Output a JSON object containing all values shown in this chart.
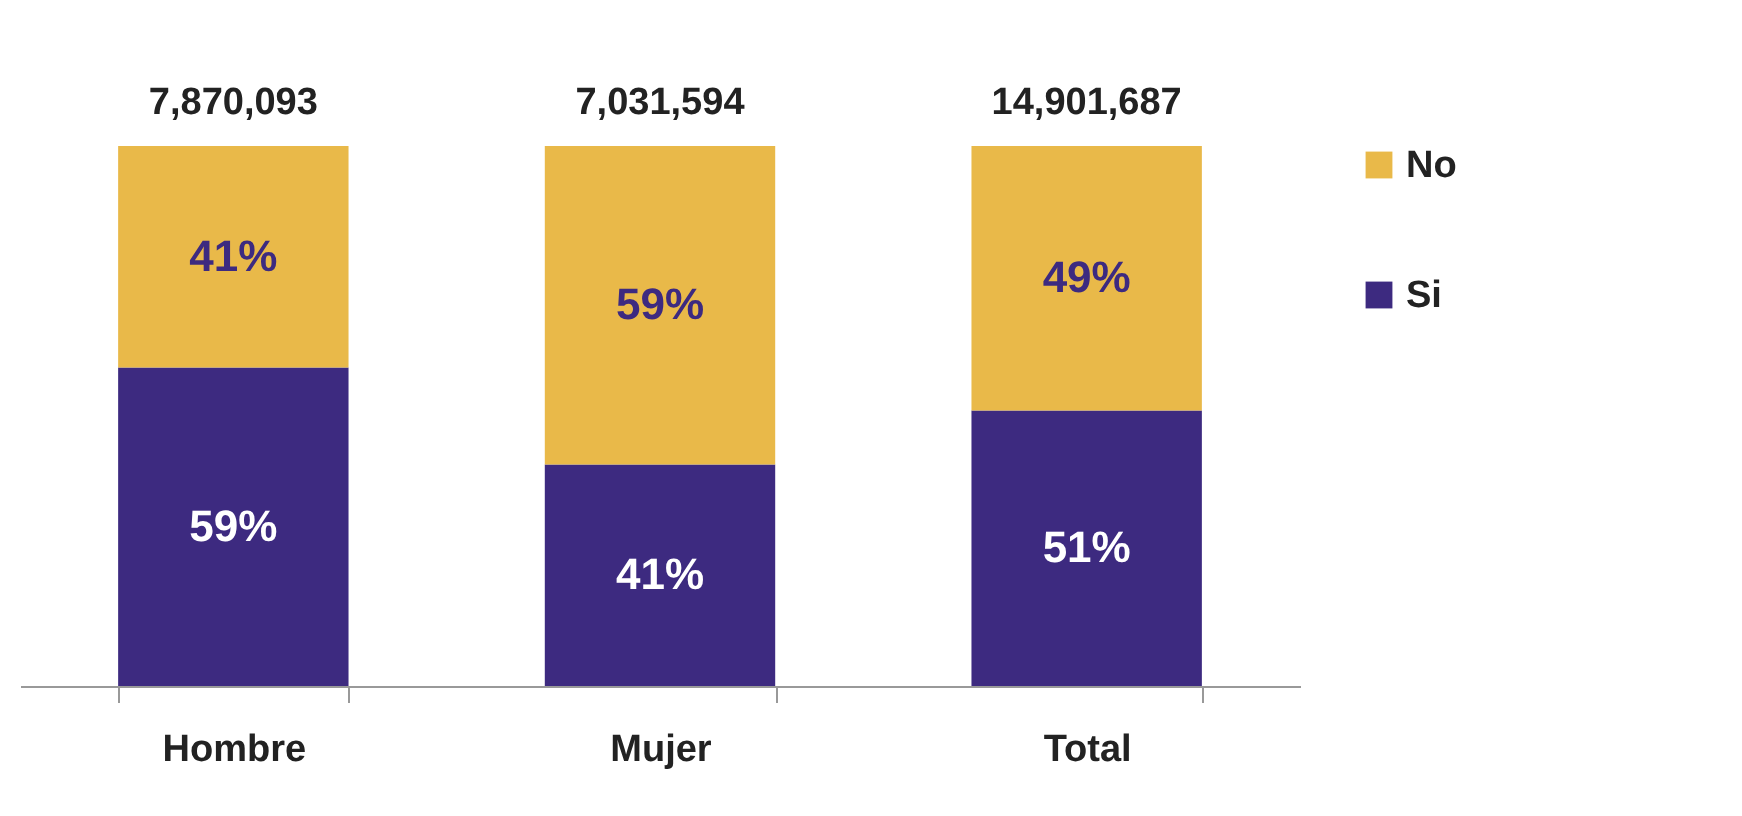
{
  "chart_data": {
    "type": "bar",
    "stacked": true,
    "categories": [
      "Hombre",
      "Mujer",
      "Total"
    ],
    "series": [
      {
        "name": "Si",
        "color": "#3d2a80",
        "values": [
          59,
          41,
          51
        ],
        "value_labels": [
          "59%",
          "41%",
          "51%"
        ]
      },
      {
        "name": "No",
        "color": "#e9b949",
        "values": [
          41,
          59,
          49
        ],
        "value_labels": [
          "41%",
          "59%",
          "49%"
        ]
      }
    ],
    "annotations": [
      {
        "text": "7,870,093",
        "x": "Hombre",
        "y": 100
      },
      {
        "text": "7,031,594",
        "x": "Mujer",
        "y": 100
      },
      {
        "text": "14,901,687",
        "x": "Total",
        "y": 100
      }
    ],
    "ylim": [
      0,
      100
    ],
    "tick_labels": "x",
    "grid": false,
    "legend": "right"
  }
}
